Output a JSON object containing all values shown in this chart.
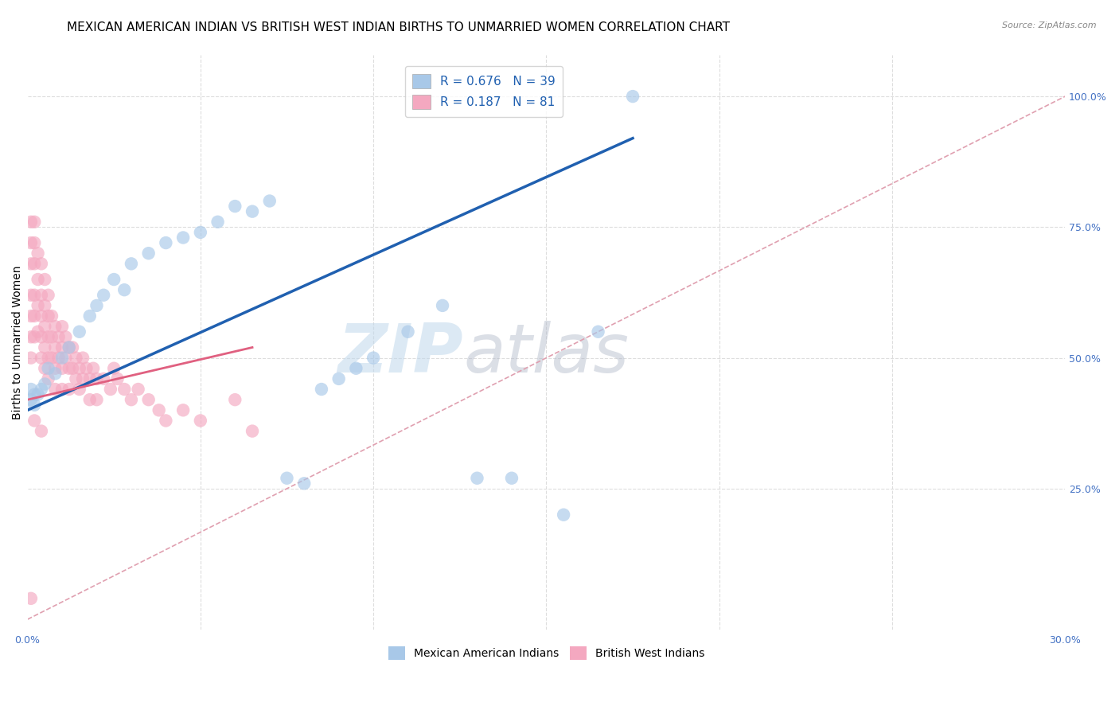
{
  "title": "MEXICAN AMERICAN INDIAN VS BRITISH WEST INDIAN BIRTHS TO UNMARRIED WOMEN CORRELATION CHART",
  "source": "Source: ZipAtlas.com",
  "ylabel": "Births to Unmarried Women",
  "xlim": [
    0.0,
    0.3
  ],
  "ylim": [
    -0.02,
    1.08
  ],
  "xticks": [
    0.0,
    0.05,
    0.1,
    0.15,
    0.2,
    0.25,
    0.3
  ],
  "xticklabels": [
    "0.0%",
    "",
    "",
    "",
    "",
    "",
    "30.0%"
  ],
  "yticks_right": [
    0.25,
    0.5,
    0.75,
    1.0
  ],
  "yticklabels_right": [
    "25.0%",
    "50.0%",
    "75.0%",
    "100.0%"
  ],
  "blue_color": "#a8c8e8",
  "pink_color": "#f4a8c0",
  "blue_line_color": "#2060b0",
  "pink_line_color": "#e06080",
  "ref_line_color": "#e0a0b0",
  "legend_blue_label": "R = 0.676   N = 39",
  "legend_pink_label": "R = 0.187   N = 81",
  "legend_category_blue": "Mexican American Indians",
  "legend_category_pink": "British West Indians",
  "blue_scatter_x": [
    0.001,
    0.001,
    0.002,
    0.002,
    0.003,
    0.004,
    0.005,
    0.006,
    0.008,
    0.01,
    0.012,
    0.015,
    0.018,
    0.02,
    0.022,
    0.025,
    0.028,
    0.03,
    0.035,
    0.04,
    0.045,
    0.05,
    0.055,
    0.06,
    0.065,
    0.07,
    0.075,
    0.08,
    0.085,
    0.09,
    0.095,
    0.1,
    0.11,
    0.12,
    0.13,
    0.14,
    0.155,
    0.165,
    0.175
  ],
  "blue_scatter_y": [
    0.42,
    0.44,
    0.41,
    0.43,
    0.43,
    0.44,
    0.45,
    0.48,
    0.47,
    0.5,
    0.52,
    0.55,
    0.58,
    0.6,
    0.62,
    0.65,
    0.63,
    0.68,
    0.7,
    0.72,
    0.73,
    0.74,
    0.76,
    0.79,
    0.78,
    0.8,
    0.27,
    0.26,
    0.44,
    0.46,
    0.48,
    0.5,
    0.55,
    0.6,
    0.27,
    0.27,
    0.2,
    0.55,
    1.0
  ],
  "pink_scatter_x": [
    0.001,
    0.001,
    0.001,
    0.001,
    0.001,
    0.001,
    0.001,
    0.001,
    0.002,
    0.002,
    0.002,
    0.002,
    0.002,
    0.002,
    0.003,
    0.003,
    0.003,
    0.003,
    0.004,
    0.004,
    0.004,
    0.004,
    0.004,
    0.005,
    0.005,
    0.005,
    0.005,
    0.005,
    0.006,
    0.006,
    0.006,
    0.006,
    0.006,
    0.007,
    0.007,
    0.007,
    0.008,
    0.008,
    0.008,
    0.008,
    0.009,
    0.009,
    0.01,
    0.01,
    0.01,
    0.01,
    0.011,
    0.011,
    0.012,
    0.012,
    0.012,
    0.013,
    0.013,
    0.014,
    0.014,
    0.015,
    0.015,
    0.016,
    0.016,
    0.017,
    0.018,
    0.018,
    0.019,
    0.02,
    0.02,
    0.022,
    0.024,
    0.025,
    0.026,
    0.028,
    0.03,
    0.032,
    0.035,
    0.038,
    0.04,
    0.045,
    0.05,
    0.06,
    0.065,
    0.002,
    0.004
  ],
  "pink_scatter_y": [
    0.76,
    0.72,
    0.68,
    0.62,
    0.58,
    0.54,
    0.5,
    0.04,
    0.76,
    0.72,
    0.68,
    0.62,
    0.58,
    0.54,
    0.7,
    0.65,
    0.6,
    0.55,
    0.68,
    0.62,
    0.58,
    0.54,
    0.5,
    0.65,
    0.6,
    0.56,
    0.52,
    0.48,
    0.62,
    0.58,
    0.54,
    0.5,
    0.46,
    0.58,
    0.54,
    0.5,
    0.56,
    0.52,
    0.48,
    0.44,
    0.54,
    0.5,
    0.56,
    0.52,
    0.48,
    0.44,
    0.54,
    0.5,
    0.52,
    0.48,
    0.44,
    0.52,
    0.48,
    0.5,
    0.46,
    0.48,
    0.44,
    0.5,
    0.46,
    0.48,
    0.46,
    0.42,
    0.48,
    0.46,
    0.42,
    0.46,
    0.44,
    0.48,
    0.46,
    0.44,
    0.42,
    0.44,
    0.42,
    0.4,
    0.38,
    0.4,
    0.38,
    0.42,
    0.36,
    0.38,
    0.36
  ],
  "watermark_zip": "ZIP",
  "watermark_atlas": "atlas",
  "title_fontsize": 11,
  "axis_label_fontsize": 10,
  "tick_fontsize": 9
}
